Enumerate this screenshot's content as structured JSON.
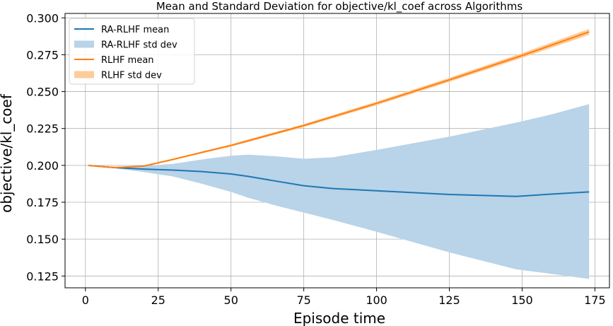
{
  "chart_data": {
    "type": "line",
    "title": "Mean and Standard Deviation for objective/kl_coef across Algorithms",
    "xlabel": "Episode time",
    "ylabel": "objective/kl_coef",
    "xlim": [
      -7,
      180
    ],
    "ylim": [
      0.117,
      0.303
    ],
    "xticks": [
      0,
      25,
      50,
      75,
      100,
      125,
      150,
      175
    ],
    "yticks": [
      0.125,
      0.15,
      0.175,
      0.2,
      0.225,
      0.25,
      0.275,
      0.3
    ],
    "ytick_labels": [
      "0.125",
      "0.150",
      "0.175",
      "0.200",
      "0.225",
      "0.250",
      "0.275",
      "0.300"
    ],
    "grid": true,
    "legend_position": "top-left",
    "legend": [
      "RA-RLHF mean",
      "RA-RLHF std dev",
      "RLHF mean",
      "RLHF std dev"
    ],
    "colors": {
      "ra_rlhf": "#1f77b4",
      "ra_rlhf_fill": "#b9d3e8",
      "rlhf": "#ff7f0e",
      "rlhf_fill": "#ffcc99"
    },
    "series": [
      {
        "name": "RA-RLHF",
        "x": [
          1,
          10,
          20,
          30,
          40,
          50,
          56,
          65,
          75,
          85,
          100,
          125,
          148,
          160,
          173
        ],
        "mean": [
          0.2,
          0.1985,
          0.1975,
          0.1968,
          0.1958,
          0.1942,
          0.1925,
          0.1895,
          0.1862,
          0.1843,
          0.1828,
          0.1803,
          0.179,
          0.1805,
          0.182
        ],
        "upper": [
          0.2,
          0.199,
          0.1995,
          0.201,
          0.204,
          0.2065,
          0.2072,
          0.2062,
          0.2045,
          0.2055,
          0.2105,
          0.2195,
          0.229,
          0.2345,
          0.2415
        ],
        "lower": [
          0.2,
          0.198,
          0.1955,
          0.1925,
          0.1875,
          0.182,
          0.178,
          0.173,
          0.168,
          0.163,
          0.155,
          0.141,
          0.1295,
          0.1265,
          0.123
        ]
      },
      {
        "name": "RLHF",
        "x": [
          1,
          10,
          20,
          30,
          40,
          50,
          75,
          100,
          125,
          150,
          173
        ],
        "mean": [
          0.2,
          0.1985,
          0.1995,
          0.204,
          0.2088,
          0.2135,
          0.227,
          0.242,
          0.258,
          0.2745,
          0.2905
        ],
        "upper": [
          0.2,
          0.1987,
          0.1999,
          0.2045,
          0.2094,
          0.2143,
          0.228,
          0.2432,
          0.2594,
          0.2761,
          0.2925
        ],
        "lower": [
          0.2,
          0.1983,
          0.1991,
          0.2035,
          0.2082,
          0.2127,
          0.226,
          0.2408,
          0.2566,
          0.2729,
          0.2885
        ]
      }
    ]
  }
}
